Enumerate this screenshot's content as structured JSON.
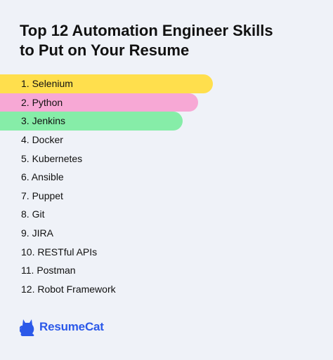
{
  "title": {
    "line1": "Top 12 Automation Engineer Skills",
    "line2": "to Put on Your Resume"
  },
  "skills": [
    {
      "label": "1. Selenium",
      "highlight": "#ffdf4d",
      "level": 0.64
    },
    {
      "label": "2. Python",
      "highlight": "#f7a8d5",
      "level": 0.595
    },
    {
      "label": "3. Jenkins",
      "highlight": "#86eda8",
      "level": 0.548
    },
    {
      "label": "4. Docker"
    },
    {
      "label": "5. Kubernetes"
    },
    {
      "label": "6. Ansible"
    },
    {
      "label": "7. Puppet"
    },
    {
      "label": "8. Git"
    },
    {
      "label": "9. JIRA"
    },
    {
      "label": "10. RESTful APIs"
    },
    {
      "label": "11. Postman"
    },
    {
      "label": "12. Robot Framework"
    }
  ],
  "logo": {
    "name": "ResumeCat",
    "icon": "cat-icon",
    "color": "#2b59e9"
  }
}
